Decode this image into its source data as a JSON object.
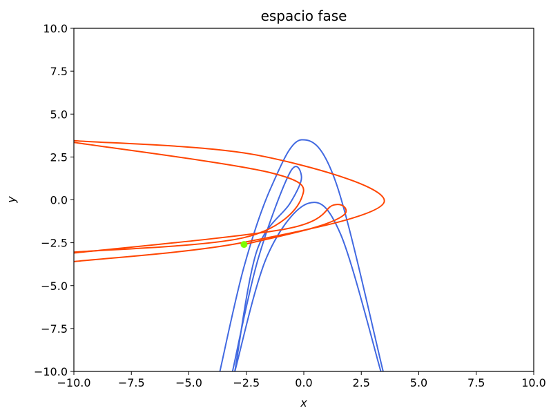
{
  "chart_data": {
    "type": "line",
    "title": "espacio fase",
    "xlabel": "x",
    "ylabel": "y",
    "xlim": [
      -10,
      10
    ],
    "ylim": [
      -10,
      10
    ],
    "x_ticks": [
      "−10.0",
      "−7.5",
      "−5.0",
      "−2.5",
      "0.0",
      "2.5",
      "5.0",
      "7.5",
      "10.0"
    ],
    "y_ticks": [
      "10.0",
      "7.5",
      "5.0",
      "2.5",
      "0.0",
      "−2.5",
      "−5.0",
      "−7.5",
      "−10.0"
    ],
    "grid": false,
    "series": [
      {
        "color": "#4169e1",
        "points": [
          [
            -3.65,
            -10.0
          ],
          [
            -2.6,
            -3.9
          ],
          [
            -1.4,
            0.8
          ],
          [
            -0.1,
            3.5
          ],
          [
            1.4,
            1.0
          ],
          [
            3.45,
            -10.0
          ]
        ]
      },
      {
        "color": "#4169e1",
        "points": [
          [
            -3.1,
            -10.0
          ],
          [
            -2.0,
            -3.5
          ],
          [
            -0.6,
            1.6
          ],
          [
            -0.1,
            1.3
          ],
          [
            -0.6,
            -0.2
          ],
          [
            -2.05,
            -3.0
          ],
          [
            -3.0,
            -10.0
          ]
        ]
      },
      {
        "color": "#4169e1",
        "points": [
          [
            -3.0,
            -10.0
          ],
          [
            -1.6,
            -3.3
          ],
          [
            0.2,
            -0.2
          ],
          [
            1.6,
            -2.0
          ],
          [
            3.35,
            -10.0
          ]
        ]
      },
      {
        "color": "#ff4500",
        "points": [
          [
            -10.0,
            3.45
          ],
          [
            -2.0,
            2.6
          ],
          [
            3.5,
            -0.1
          ],
          [
            -2.7,
            -2.5
          ],
          [
            -10.0,
            -3.6
          ]
        ]
      },
      {
        "color": "#ff4500",
        "points": [
          [
            -10.0,
            3.35
          ],
          [
            -1.5,
            1.6
          ],
          [
            -0.1,
            0.1
          ],
          [
            -2.6,
            -2.2
          ],
          [
            -10.0,
            -3.05
          ]
        ]
      },
      {
        "color": "#ff4500",
        "points": [
          [
            -10.0,
            -3.1
          ],
          [
            -0.8,
            -1.7
          ],
          [
            1.3,
            -0.3
          ],
          [
            1.8,
            -0.8
          ],
          [
            0.5,
            -1.6
          ],
          [
            -2.6,
            -2.6
          ]
        ]
      }
    ],
    "marker": {
      "x": -2.6,
      "y": -2.6,
      "color": "#7cfc00"
    }
  }
}
